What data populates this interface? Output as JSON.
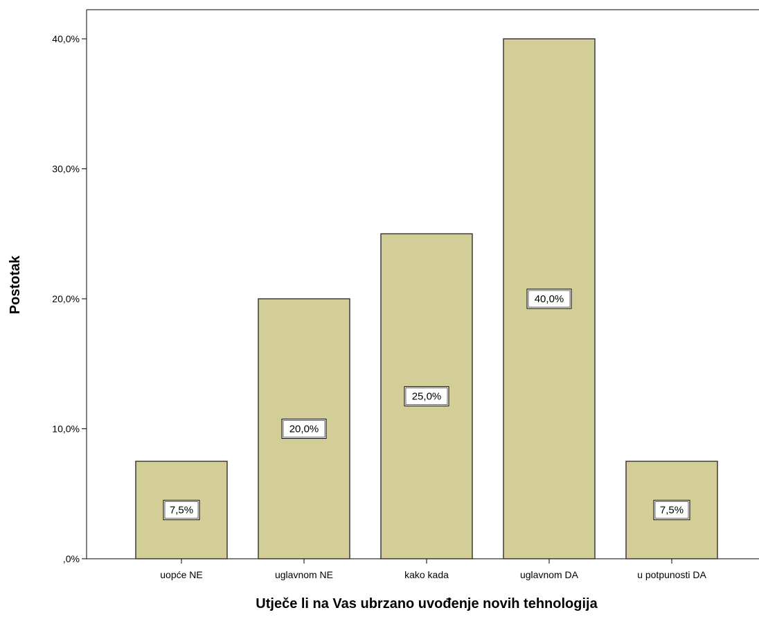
{
  "chart_data": {
    "type": "bar",
    "categories": [
      "uopće NE",
      "uglavnom NE",
      "kako kada",
      "uglavnom  DA",
      "u potpunosti  DA"
    ],
    "values": [
      7.5,
      20.0,
      25.0,
      40.0,
      7.5
    ],
    "data_labels": [
      "7,5%",
      "20,0%",
      "25,0%",
      "40,0%",
      "7,5%"
    ],
    "xlabel": "Utječe li na Vas ubrzano uvođenje novih tehnologija",
    "ylabel": "Postotak",
    "ylim": [
      0,
      40
    ],
    "yticks": [
      0,
      10,
      20,
      30,
      40
    ],
    "ytick_labels": [
      ",0%",
      "10,0%",
      "20,0%",
      "30,0%",
      "40,0%"
    ],
    "bar_color": "#d3ce97",
    "bar_border_color": "#3a3a3a",
    "grid": false,
    "legend": "none"
  }
}
